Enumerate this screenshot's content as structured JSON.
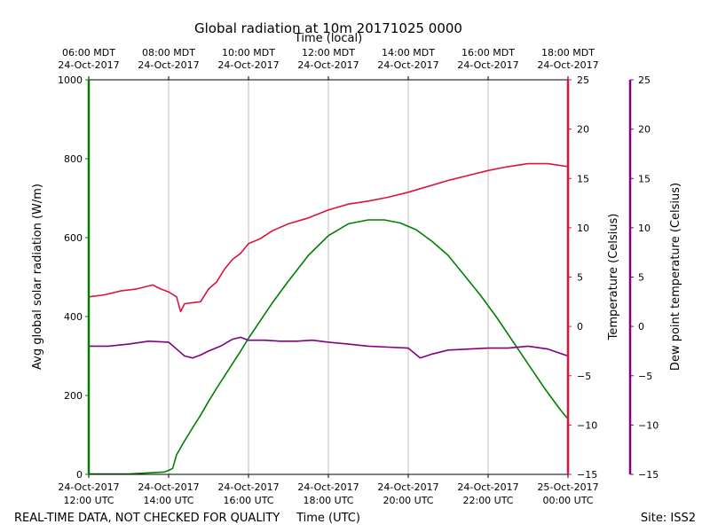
{
  "chart_data": {
    "type": "line",
    "title": "Global radiation at 10m 20171025 0000",
    "top_axis_label": "Time (local)",
    "xlabel": "Time (UTC)",
    "x_unit": "hours UTC on 24-Oct-2017",
    "xlim": [
      12,
      24
    ],
    "utc_ticks": [
      {
        "hour": 12,
        "date": "24-Oct-2017",
        "time": "12:00 UTC"
      },
      {
        "hour": 14,
        "date": "24-Oct-2017",
        "time": "14:00 UTC"
      },
      {
        "hour": 16,
        "date": "24-Oct-2017",
        "time": "16:00 UTC"
      },
      {
        "hour": 18,
        "date": "24-Oct-2017",
        "time": "18:00 UTC"
      },
      {
        "hour": 20,
        "date": "24-Oct-2017",
        "time": "20:00 UTC"
      },
      {
        "hour": 22,
        "date": "24-Oct-2017",
        "time": "22:00 UTC"
      },
      {
        "hour": 24,
        "date": "25-Oct-2017",
        "time": "00:00 UTC"
      }
    ],
    "local_ticks": [
      {
        "hour": 12,
        "time": "06:00 MDT",
        "date": "24-Oct-2017"
      },
      {
        "hour": 14,
        "time": "08:00 MDT",
        "date": "24-Oct-2017"
      },
      {
        "hour": 16,
        "time": "10:00 MDT",
        "date": "24-Oct-2017"
      },
      {
        "hour": 18,
        "time": "12:00 MDT",
        "date": "24-Oct-2017"
      },
      {
        "hour": 20,
        "time": "14:00 MDT",
        "date": "24-Oct-2017"
      },
      {
        "hour": 22,
        "time": "16:00 MDT",
        "date": "24-Oct-2017"
      },
      {
        "hour": 24,
        "time": "18:00 MDT",
        "date": "24-Oct-2017"
      }
    ],
    "left_axis": {
      "label": "Avg global solar radiation (W/m)",
      "color": "#008000",
      "ylim": [
        0,
        1000
      ],
      "ticks": [
        0,
        200,
        400,
        600,
        800,
        1000
      ]
    },
    "right_axis_1": {
      "label": "Temperature (Celsius)",
      "color": "#dc143c",
      "ylim": [
        -15,
        25
      ],
      "ticks": [
        -15,
        -10,
        -5,
        0,
        5,
        10,
        15,
        20,
        25
      ],
      "tick_labels": [
        "−15",
        "−10",
        "−5",
        "0",
        "5",
        "10",
        "15",
        "20",
        "25"
      ]
    },
    "right_axis_2": {
      "label": "Dew point temperature (Celsius)",
      "color": "#800080",
      "ylim": [
        -15,
        25
      ],
      "ticks": [
        -15,
        -10,
        -5,
        0,
        5,
        10,
        15,
        20,
        25
      ],
      "tick_labels": [
        "−15",
        "−10",
        "−5",
        "0",
        "5",
        "10",
        "15",
        "20",
        "25"
      ]
    },
    "series": [
      {
        "name": "Avg global solar radiation",
        "axis": "left",
        "color": "#008000",
        "x": [
          12,
          13,
          13.9,
          14,
          14.1,
          14.2,
          14.4,
          14.6,
          14.8,
          15,
          15.2,
          15.5,
          15.8,
          16,
          16.3,
          16.6,
          17,
          17.5,
          18,
          18.5,
          19,
          19.4,
          19.8,
          20.2,
          20.6,
          21,
          21.4,
          21.8,
          22.2,
          22.6,
          23,
          23.4,
          23.8,
          24
        ],
        "values": [
          1,
          1,
          6,
          10,
          15,
          50,
          85,
          118,
          150,
          185,
          218,
          265,
          312,
          345,
          390,
          435,
          490,
          555,
          605,
          635,
          645,
          645,
          637,
          620,
          590,
          555,
          505,
          455,
          400,
          340,
          280,
          220,
          165,
          140
        ]
      },
      {
        "name": "Temperature",
        "axis": "right_1",
        "color": "#dc143c",
        "x": [
          12,
          12.4,
          12.8,
          13.2,
          13.6,
          13.8,
          14,
          14.2,
          14.3,
          14.4,
          14.6,
          14.8,
          15,
          15.2,
          15.4,
          15.6,
          15.8,
          16,
          16.3,
          16.6,
          17,
          17.5,
          18,
          18.5,
          19,
          19.5,
          20,
          20.5,
          21,
          21.5,
          22,
          22.5,
          23,
          23.5,
          24
        ],
        "values": [
          3,
          3.2,
          3.6,
          3.8,
          4.2,
          3.8,
          3.5,
          3,
          1.5,
          2.3,
          2.4,
          2.5,
          3.8,
          4.5,
          5.8,
          6.8,
          7.4,
          8.4,
          8.9,
          9.7,
          10.4,
          11.0,
          11.8,
          12.4,
          12.7,
          13.1,
          13.6,
          14.2,
          14.8,
          15.3,
          15.8,
          16.2,
          16.5,
          16.5,
          16.2
        ]
      },
      {
        "name": "Dew point temperature",
        "axis": "right_2",
        "color": "#800080",
        "x": [
          12,
          12.5,
          13,
          13.5,
          14,
          14.2,
          14.4,
          14.6,
          14.8,
          15,
          15.3,
          15.6,
          15.8,
          16,
          16.4,
          16.8,
          17.2,
          17.6,
          18,
          18.5,
          19,
          19.5,
          20,
          20.3,
          20.6,
          21,
          21.5,
          22,
          22.5,
          23,
          23.5,
          24
        ],
        "values": [
          -2.0,
          -2.0,
          -1.8,
          -1.5,
          -1.6,
          -2.3,
          -3.0,
          -3.2,
          -2.9,
          -2.5,
          -2.0,
          -1.3,
          -1.1,
          -1.4,
          -1.4,
          -1.5,
          -1.5,
          -1.4,
          -1.6,
          -1.8,
          -2.0,
          -2.1,
          -2.2,
          -3.2,
          -2.8,
          -2.4,
          -2.3,
          -2.2,
          -2.2,
          -2.0,
          -2.3,
          -3.0
        ]
      }
    ]
  },
  "footer": {
    "disclaimer": "REAL-TIME DATA, NOT CHECKED FOR QUALITY",
    "site": "Site: ISS2"
  }
}
